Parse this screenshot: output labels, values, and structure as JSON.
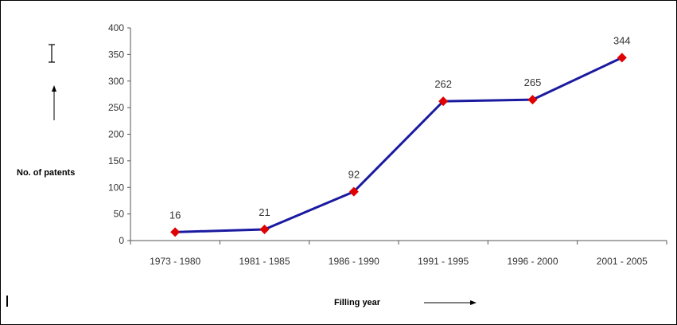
{
  "chart_data": {
    "type": "line",
    "categories": [
      "1973 - 1980",
      "1981 - 1985",
      "1986 - 1990",
      "1991 - 1995",
      "1996 - 2000",
      "2001 - 2005"
    ],
    "series": [
      {
        "values": [
          16,
          21,
          92,
          262,
          265,
          344
        ],
        "color": "#1a1aa0",
        "marker_color": "#e00000",
        "marker": "diamond"
      }
    ],
    "data_labels": [
      "16",
      "21",
      "92",
      "262",
      "265",
      "344"
    ],
    "ylabel": "No. of patents",
    "xlabel": "Filling year",
    "ylim": [
      0,
      400
    ],
    "yticks": [
      "0",
      "50",
      "100",
      "150",
      "200",
      "250",
      "300",
      "350",
      "400"
    ],
    "grid": false,
    "legend": "none"
  }
}
